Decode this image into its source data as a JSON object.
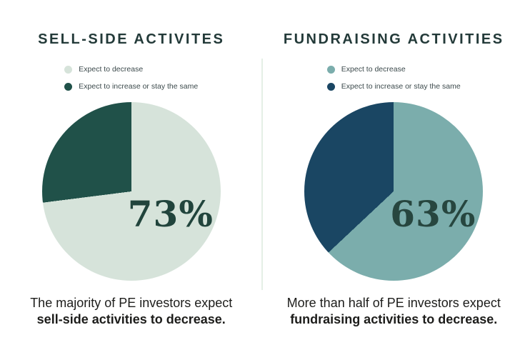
{
  "figure": {
    "background": "#ffffff",
    "divider_color": "#e4efe6"
  },
  "chart_data": [
    {
      "type": "pie",
      "title": "SELL-SIDE ACTIVITES",
      "legend_position": "top-center",
      "slices": [
        {
          "label": "Expect to decrease",
          "value": 73,
          "color": "#d6e3da"
        },
        {
          "label": "Expect to increase or stay the same",
          "value": 27,
          "color": "#205149"
        }
      ],
      "percent_label": "73%",
      "percent_color": "#21443c",
      "caption_line1": "The majority of PE investors expect",
      "caption_line2": "sell-side activities to decrease."
    },
    {
      "type": "pie",
      "title": "FUNDRAISING ACTIVITIES",
      "legend_position": "top-center",
      "slices": [
        {
          "label": "Expect to decrease",
          "value": 63,
          "color": "#7badac"
        },
        {
          "label": "Expect to increase or stay the same",
          "value": 37,
          "color": "#1a4663"
        }
      ],
      "percent_label": "63%",
      "percent_color": "#27463f",
      "caption_line1": "More than half of PE investors expect",
      "caption_line2": "fundraising activities to decrease."
    }
  ]
}
